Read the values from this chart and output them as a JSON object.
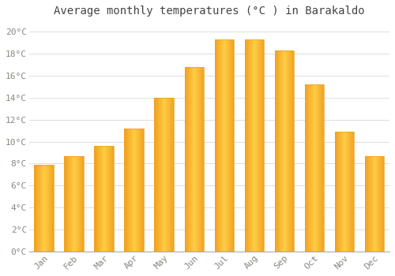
{
  "title": "Average monthly temperatures (°C ) in Barakaldo",
  "months": [
    "Jan",
    "Feb",
    "Mar",
    "Apr",
    "May",
    "Jun",
    "Jul",
    "Aug",
    "Sep",
    "Oct",
    "Nov",
    "Dec"
  ],
  "values": [
    7.9,
    8.7,
    9.6,
    11.2,
    14.0,
    16.8,
    19.3,
    19.3,
    18.3,
    15.2,
    10.9,
    8.7
  ],
  "bar_color_center": "#FFCC44",
  "bar_color_edge": "#F0A020",
  "background_color": "#FFFFFF",
  "plot_bg_color": "#FFFFFF",
  "ylim": [
    0,
    21
  ],
  "yticks": [
    0,
    2,
    4,
    6,
    8,
    10,
    12,
    14,
    16,
    18,
    20
  ],
  "grid_color": "#DDDDDD",
  "title_fontsize": 10,
  "tick_fontsize": 8,
  "tick_color": "#888880",
  "spine_color": "#AAAAAA"
}
